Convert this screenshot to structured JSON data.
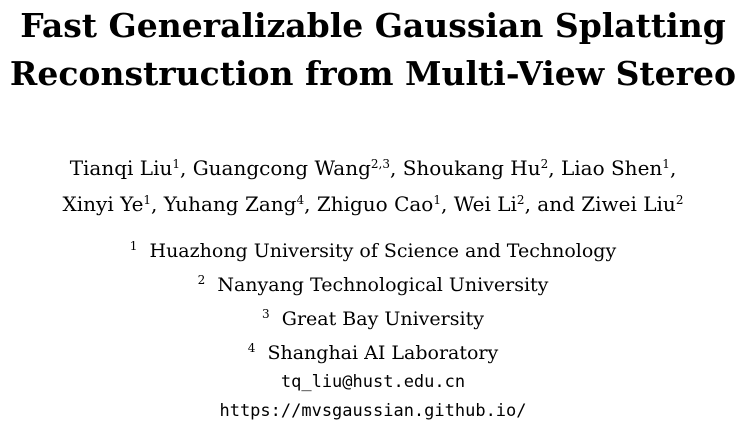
{
  "title_lines": [
    "Fast Generalizable Gaussian Splatting",
    "Reconstruction from Multi-View Stereo"
  ],
  "authors": [
    {
      "name": "Tianqi Liu",
      "sup": "1"
    },
    {
      "name": "Guangcong Wang",
      "sup": "2,3"
    },
    {
      "name": "Shoukang Hu",
      "sup": "2"
    },
    {
      "name": "Liao Shen",
      "sup": "1"
    },
    {
      "name": "Xinyi Ye",
      "sup": "1"
    },
    {
      "name": "Yuhang Zang",
      "sup": "4"
    },
    {
      "name": "Zhiguo Cao",
      "sup": "1"
    },
    {
      "name": "Wei Li",
      "sup": "2"
    },
    {
      "name": "Ziwei Liu",
      "sup": "2"
    }
  ],
  "and_word": "and",
  "affiliations": [
    {
      "sup": "1",
      "name": "Huazhong University of Science and Technology"
    },
    {
      "sup": "2",
      "name": "Nanyang Technological University"
    },
    {
      "sup": "3",
      "name": "Great Bay University"
    },
    {
      "sup": "4",
      "name": "Shanghai AI Laboratory"
    }
  ],
  "email": "tq_liu@hust.edu.cn",
  "url": "https://mvsgaussian.github.io/"
}
